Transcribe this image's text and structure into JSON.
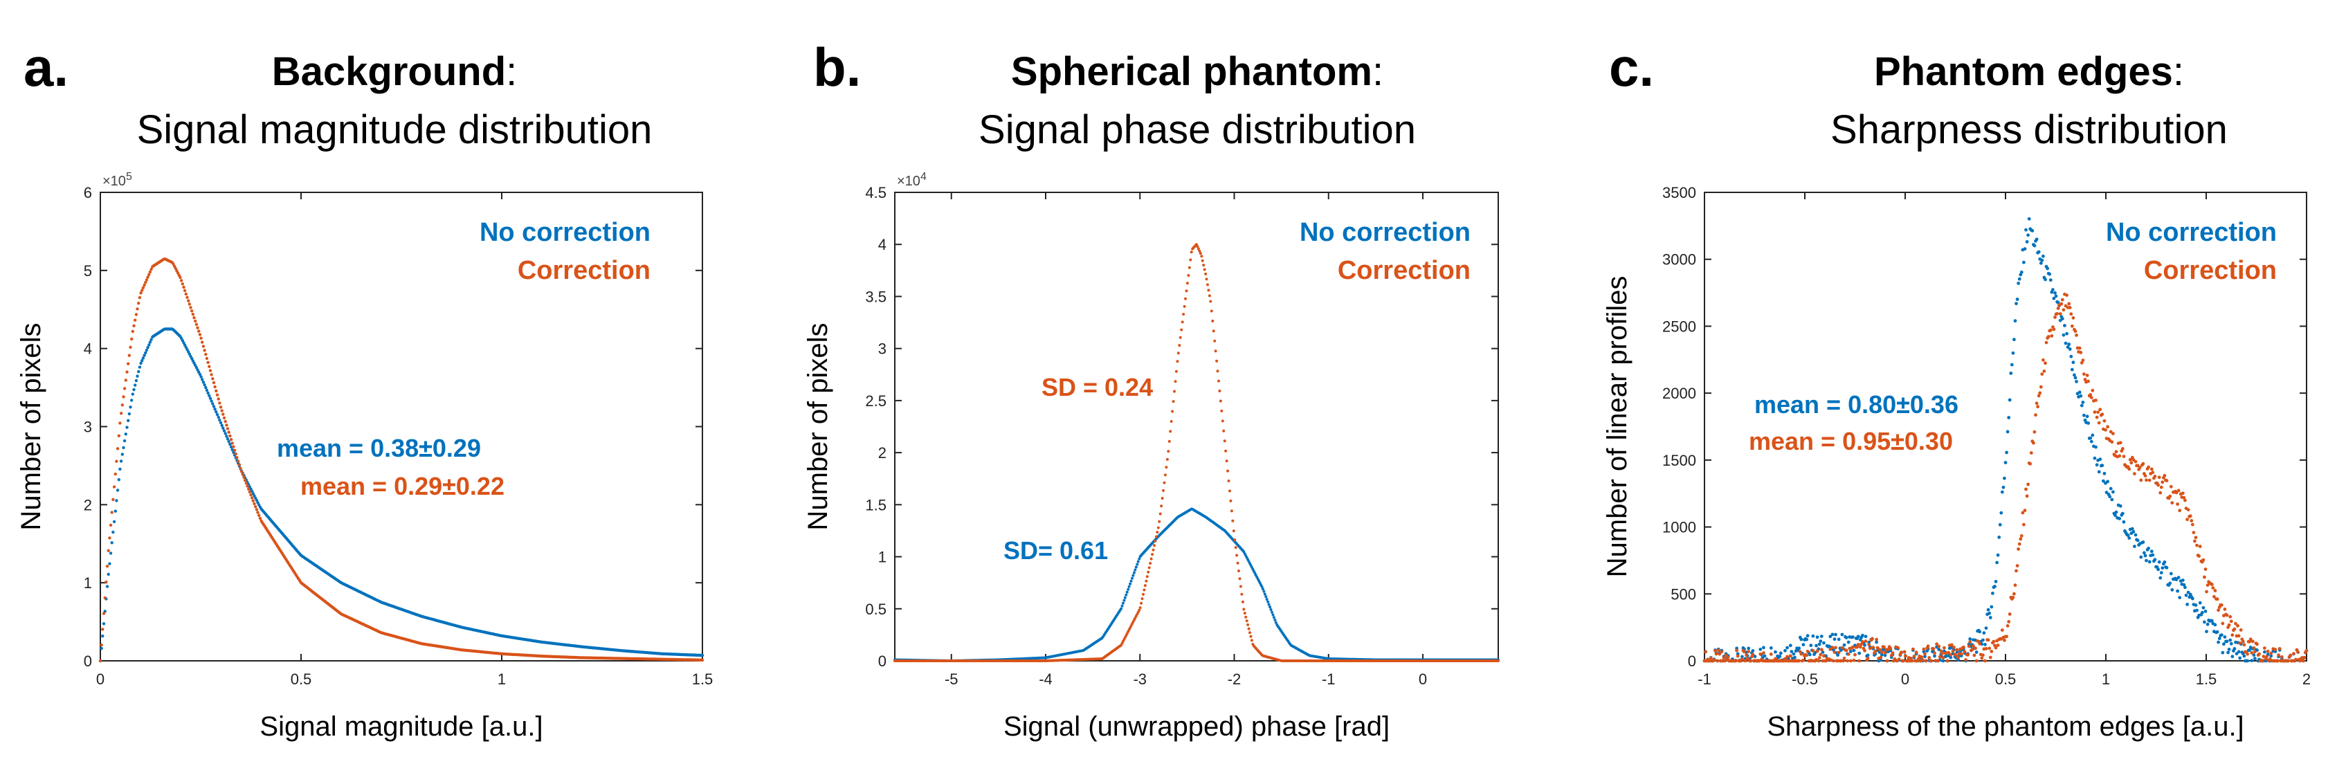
{
  "colors": {
    "no_correction": "#0072BD",
    "correction": "#D95319",
    "axis": "#000000"
  },
  "panels": [
    {
      "letter": "a.",
      "title_bold": "Background",
      "title_colon": ":",
      "title_line2": "Signal magnitude distribution",
      "legend": {
        "no_correction": "No correction",
        "correction": "Correction"
      },
      "annotations": [
        {
          "text": "mean = 0.38±0.29",
          "series": "no_correction"
        },
        {
          "text": "mean = 0.29±0.22",
          "series": "correction"
        }
      ]
    },
    {
      "letter": "b.",
      "title_bold": "Spherical phantom",
      "title_colon": ":",
      "title_line2": "Signal phase distribution",
      "legend": {
        "no_correction": "No correction",
        "correction": "Correction"
      },
      "annotations": [
        {
          "text": "SD = 0.24",
          "series": "correction"
        },
        {
          "text": "SD= 0.61",
          "series": "no_correction"
        }
      ]
    },
    {
      "letter": "c.",
      "title_bold": "Phantom edges",
      "title_colon": ":",
      "title_line2": "Sharpness distribution",
      "legend": {
        "no_correction": "No correction",
        "correction": "Correction"
      },
      "annotations": [
        {
          "text": "mean = 0.80±0.36",
          "series": "no_correction"
        },
        {
          "text": "mean = 0.95±0.30",
          "series": "correction"
        }
      ]
    }
  ],
  "chart_data": [
    {
      "type": "scatter",
      "title": "Background: Signal magnitude distribution",
      "xlabel": "Signal magnitude [a.u.]",
      "ylabel": "Number of pixels",
      "xlim": [
        0,
        1.5
      ],
      "ylim": [
        0,
        6
      ],
      "y_exponent": "×10^5",
      "x_ticks": [
        "0",
        "0.5",
        "1",
        "1.5"
      ],
      "y_ticks": [
        "0",
        "1",
        "2",
        "3",
        "4",
        "5",
        "6"
      ],
      "series": [
        {
          "name": "No correction",
          "x": [
            0,
            0.02,
            0.05,
            0.08,
            0.1,
            0.13,
            0.16,
            0.18,
            0.2,
            0.25,
            0.3,
            0.35,
            0.4,
            0.5,
            0.6,
            0.7,
            0.8,
            0.9,
            1.0,
            1.1,
            1.2,
            1.3,
            1.4,
            1.5
          ],
          "y": [
            0,
            1.1,
            2.5,
            3.4,
            3.8,
            4.15,
            4.25,
            4.25,
            4.15,
            3.65,
            3.05,
            2.45,
            1.95,
            1.35,
            1.0,
            0.75,
            0.57,
            0.43,
            0.32,
            0.24,
            0.18,
            0.13,
            0.09,
            0.07
          ]
        },
        {
          "name": "Correction",
          "x": [
            0,
            0.02,
            0.05,
            0.08,
            0.1,
            0.13,
            0.16,
            0.18,
            0.2,
            0.25,
            0.3,
            0.35,
            0.4,
            0.5,
            0.6,
            0.7,
            0.8,
            0.9,
            1.0,
            1.1,
            1.2,
            1.3,
            1.4,
            1.5
          ],
          "y": [
            0,
            1.4,
            3.1,
            4.2,
            4.7,
            5.05,
            5.15,
            5.1,
            4.9,
            4.15,
            3.25,
            2.45,
            1.8,
            1.0,
            0.6,
            0.36,
            0.22,
            0.14,
            0.09,
            0.06,
            0.04,
            0.03,
            0.02,
            0.01
          ]
        }
      ]
    },
    {
      "type": "scatter",
      "title": "Spherical phantom: Signal phase distribution",
      "xlabel": "Signal (unwrapped) phase [rad]",
      "ylabel": "Number of pixels",
      "xlim": [
        -5.6,
        0.8
      ],
      "ylim": [
        0,
        4.5
      ],
      "y_exponent": "×10^4",
      "x_ticks": [
        "-5",
        "-4",
        "-3",
        "-2",
        "-1",
        "0"
      ],
      "y_ticks": [
        "0",
        "0.5",
        "1",
        "1.5",
        "2",
        "2.5",
        "3",
        "3.5",
        "4",
        "4.5"
      ],
      "series": [
        {
          "name": "No correction",
          "x": [
            -5.6,
            -5.0,
            -4.5,
            -4.0,
            -3.6,
            -3.4,
            -3.2,
            -3.0,
            -2.8,
            -2.6,
            -2.45,
            -2.3,
            -2.1,
            -1.9,
            -1.7,
            -1.55,
            -1.4,
            -1.2,
            -1.0,
            -0.5,
            0,
            0.8
          ],
          "y": [
            0.01,
            0.0,
            0.01,
            0.03,
            0.1,
            0.22,
            0.5,
            1.0,
            1.2,
            1.38,
            1.46,
            1.38,
            1.25,
            1.05,
            0.7,
            0.35,
            0.15,
            0.05,
            0.02,
            0.01,
            0.01,
            0.01
          ]
        },
        {
          "name": "Correction",
          "x": [
            -5.6,
            -4.0,
            -3.4,
            -3.2,
            -3.0,
            -2.8,
            -2.7,
            -2.6,
            -2.5,
            -2.45,
            -2.4,
            -2.35,
            -2.3,
            -2.25,
            -2.2,
            -2.1,
            -2.0,
            -1.9,
            -1.8,
            -1.7,
            -1.5,
            0.8
          ],
          "y": [
            0.0,
            0.0,
            0.02,
            0.15,
            0.5,
            1.3,
            2.0,
            2.9,
            3.6,
            3.95,
            4.0,
            3.9,
            3.7,
            3.45,
            3.0,
            2.1,
            1.2,
            0.5,
            0.15,
            0.05,
            0.0,
            0.0
          ]
        }
      ]
    },
    {
      "type": "scatter",
      "title": "Phantom edges: Sharpness distribution",
      "xlabel": "Sharpness of the phantom edges [a.u.]",
      "ylabel": "Number of linear profiles",
      "xlim": [
        -1,
        2
      ],
      "ylim": [
        0,
        3500
      ],
      "x_ticks": [
        "-1",
        "-0.5",
        "0",
        "0.5",
        "1",
        "1.5",
        "2"
      ],
      "y_ticks": [
        "0",
        "500",
        "1000",
        "1500",
        "2000",
        "2500",
        "3000",
        "3500"
      ],
      "series": [
        {
          "name": "No correction",
          "x": [
            -1.0,
            -0.8,
            -0.6,
            -0.5,
            -0.4,
            -0.3,
            -0.2,
            -0.1,
            0.0,
            0.1,
            0.3,
            0.4,
            0.45,
            0.5,
            0.55,
            0.6,
            0.62,
            0.65,
            0.7,
            0.75,
            0.8,
            0.9,
            1.0,
            1.1,
            1.2,
            1.3,
            1.4,
            1.5,
            1.6,
            1.7,
            1.8,
            2.0
          ],
          "y": [
            0,
            20,
            60,
            120,
            110,
            130,
            120,
            40,
            0,
            10,
            60,
            200,
            600,
            1500,
            2600,
            3150,
            3250,
            3100,
            2900,
            2700,
            2400,
            1800,
            1300,
            1000,
            800,
            650,
            500,
            300,
            100,
            30,
            5,
            0
          ]
        },
        {
          "name": "Correction",
          "x": [
            -1.0,
            -0.5,
            -0.3,
            -0.2,
            -0.15,
            -0.1,
            0.0,
            0.1,
            0.2,
            0.3,
            0.4,
            0.5,
            0.55,
            0.6,
            0.65,
            0.7,
            0.75,
            0.8,
            0.85,
            0.9,
            1.0,
            1.1,
            1.2,
            1.3,
            1.4,
            1.45,
            1.5,
            1.6,
            1.7,
            1.8,
            1.9,
            2.0
          ],
          "y": [
            0,
            0,
            30,
            80,
            100,
            60,
            0,
            30,
            60,
            70,
            70,
            200,
            600,
            1200,
            1800,
            2300,
            2550,
            2680,
            2450,
            2100,
            1700,
            1500,
            1400,
            1300,
            1150,
            900,
            600,
            300,
            100,
            30,
            5,
            0
          ]
        }
      ]
    }
  ]
}
